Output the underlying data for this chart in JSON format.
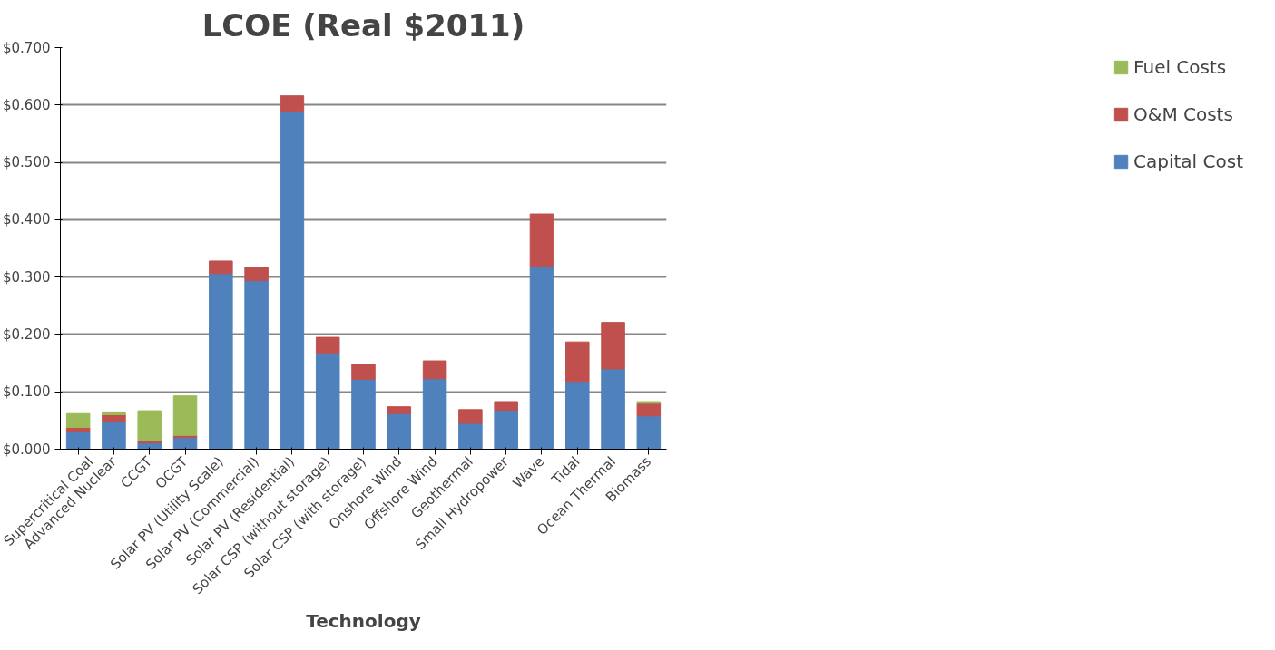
{
  "chart_data": {
    "type": "bar",
    "stacked": true,
    "title": "LCOE (Real $2011)",
    "xlabel": "Technology",
    "categories": [
      "Supercritical Coal",
      "Advanced Nuclear",
      "CCGT",
      "OCGT",
      "Solar PV (Utility Scale)",
      "Solar PV (Commercial)",
      "Solar PV (Residential)",
      "Solar CSP (without storage)",
      "Solar CSP (with storage)",
      "Onshore Wind",
      "Offshore Wind",
      "Geothermal",
      "Small Hydropower",
      "Wave",
      "Tidal",
      "Ocean Thermal",
      "Biomass"
    ],
    "series": [
      {
        "name": "Capital Cost",
        "color": "#4f81bd",
        "values": [
          0.031,
          0.048,
          0.011,
          0.02,
          0.306,
          0.294,
          0.589,
          0.168,
          0.122,
          0.062,
          0.123,
          0.045,
          0.068,
          0.318,
          0.118,
          0.14,
          0.058
        ]
      },
      {
        "name": "O&M Costs",
        "color": "#c0504d",
        "values": [
          0.007,
          0.012,
          0.004,
          0.004,
          0.022,
          0.023,
          0.027,
          0.027,
          0.026,
          0.012,
          0.031,
          0.024,
          0.015,
          0.092,
          0.069,
          0.081,
          0.022
        ]
      },
      {
        "name": "Fuel Costs",
        "color": "#9bbb59",
        "values": [
          0.024,
          0.005,
          0.052,
          0.069,
          null,
          null,
          null,
          null,
          null,
          null,
          null,
          null,
          null,
          null,
          null,
          null,
          0.003
        ]
      }
    ],
    "ylim": [
      0,
      0.7
    ],
    "yticks": [
      {
        "value": 0,
        "label": "$0.000"
      },
      {
        "value": 0.1,
        "label": "$0.100"
      },
      {
        "value": 0.2,
        "label": "$0.200"
      },
      {
        "value": 0.3,
        "label": "$0.300"
      },
      {
        "value": 0.4,
        "label": "$0.400"
      },
      {
        "value": 0.5,
        "label": "$0.500"
      },
      {
        "value": 0.6,
        "label": "$0.600"
      },
      {
        "value": 0.7,
        "label": "$0.700"
      }
    ],
    "grid": "y",
    "legend": "right"
  }
}
